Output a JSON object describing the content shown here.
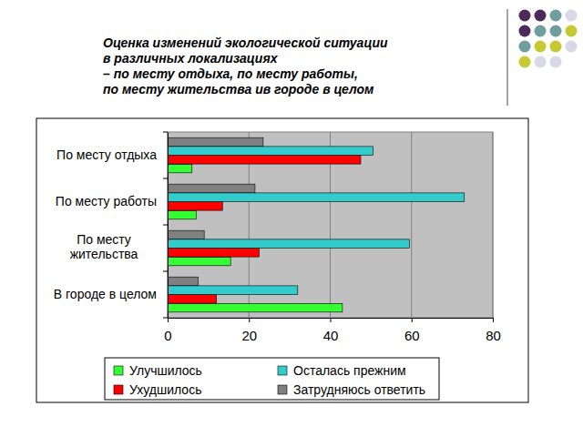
{
  "chart_data": {
    "type": "bar",
    "orientation": "horizontal",
    "title": "Оценка изменений экологической ситуации\nв различных локализациях\n– по месту отдыха, по месту работы,\nпо месту жительства ив городе в целом",
    "categories": [
      "По месту отдыха",
      "По месту работы",
      "По месту жительства",
      "В городе в целом"
    ],
    "series": [
      {
        "name": "Улучшилось",
        "color": "#33ff33",
        "values": [
          6,
          7,
          15.5,
          43
        ]
      },
      {
        "name": "Ухудшилось",
        "color": "#ff0000",
        "values": [
          47.5,
          13.5,
          22.5,
          12
        ]
      },
      {
        "name": "Осталась прежним",
        "color": "#33cccc",
        "values": [
          50.5,
          73,
          59.5,
          32
        ]
      },
      {
        "name": "Затрудняюсь ответить",
        "color": "#808080",
        "values": [
          23.5,
          21.5,
          9,
          7.5
        ]
      }
    ],
    "xlim": [
      0,
      80
    ],
    "xticks": [
      0,
      20,
      40,
      60,
      80
    ],
    "grid": true,
    "legend": "bottom"
  }
}
